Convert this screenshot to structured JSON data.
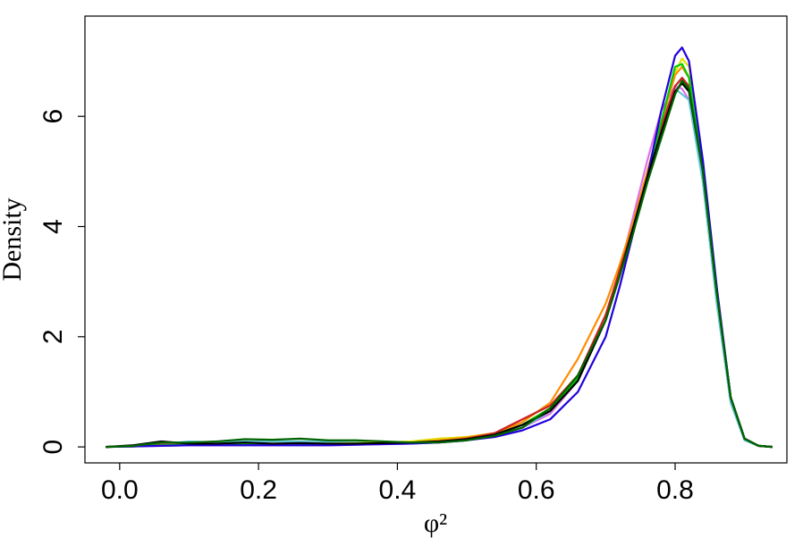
{
  "chart_data": {
    "type": "line",
    "x_label": "φ²",
    "y_label": "Density",
    "xlim": [
      -0.05,
      0.961
    ],
    "ylim": [
      -0.29,
      7.82
    ],
    "xticks": [
      {
        "value": 0,
        "label": "0.0"
      },
      0.2,
      0.4,
      0.6,
      0.8
    ],
    "yticks": [
      0,
      2,
      4,
      6
    ],
    "grid": false,
    "x": [
      -0.02,
      0.02,
      0.06,
      0.1,
      0.14,
      0.18,
      0.22,
      0.26,
      0.3,
      0.34,
      0.38,
      0.42,
      0.46,
      0.5,
      0.54,
      0.58,
      0.62,
      0.66,
      0.7,
      0.72,
      0.74,
      0.76,
      0.78,
      0.8,
      0.81,
      0.82,
      0.84,
      0.86,
      0.88,
      0.9,
      0.92,
      0.94
    ],
    "series": [
      {
        "color": "#e070e8",
        "values": [
          0,
          0.01,
          0.02,
          0.03,
          0.03,
          0.03,
          0.03,
          0.03,
          0.03,
          0.04,
          0.05,
          0.06,
          0.08,
          0.12,
          0.2,
          0.35,
          0.6,
          1.2,
          2.3,
          3.2,
          4.2,
          5.2,
          6.1,
          6.55,
          6.5,
          6.3,
          4.9,
          2.8,
          0.9,
          0.15,
          0.02,
          0
        ]
      },
      {
        "color": "#5fc7d8",
        "values": [
          0,
          0.02,
          0.05,
          0.1,
          0.08,
          0.1,
          0.1,
          0.1,
          0.09,
          0.08,
          0.08,
          0.08,
          0.09,
          0.12,
          0.2,
          0.35,
          0.65,
          1.2,
          2.3,
          3.1,
          4.0,
          5.0,
          5.9,
          6.5,
          6.4,
          6.3,
          4.8,
          2.6,
          0.8,
          0.12,
          0.02,
          0
        ]
      },
      {
        "color": "#e0e000",
        "values": [
          0,
          0.01,
          0.03,
          0.04,
          0.04,
          0.05,
          0.06,
          0.06,
          0.06,
          0.07,
          0.08,
          0.1,
          0.15,
          0.18,
          0.25,
          0.4,
          0.7,
          1.3,
          2.3,
          3.1,
          4.0,
          5.0,
          5.9,
          6.8,
          7.05,
          6.9,
          5.1,
          2.8,
          0.9,
          0.15,
          0.02,
          0
        ]
      },
      {
        "color": "#ff8c00",
        "values": [
          0,
          0.01,
          0.03,
          0.04,
          0.04,
          0.05,
          0.05,
          0.05,
          0.05,
          0.05,
          0.06,
          0.08,
          0.12,
          0.17,
          0.25,
          0.45,
          0.8,
          1.6,
          2.6,
          3.3,
          4.1,
          5.0,
          5.9,
          6.75,
          6.9,
          6.7,
          5.0,
          2.8,
          0.9,
          0.15,
          0.02,
          0
        ]
      },
      {
        "color": "#cc2020",
        "values": [
          0,
          0.02,
          0.04,
          0.04,
          0.05,
          0.05,
          0.05,
          0.05,
          0.05,
          0.06,
          0.06,
          0.07,
          0.09,
          0.15,
          0.25,
          0.5,
          0.75,
          1.3,
          2.4,
          3.2,
          4.0,
          4.9,
          5.8,
          6.55,
          6.7,
          6.55,
          5.0,
          2.8,
          0.9,
          0.15,
          0.02,
          0
        ]
      },
      {
        "color": "#00cc00",
        "values": [
          0,
          0.01,
          0.03,
          0.04,
          0.04,
          0.05,
          0.05,
          0.05,
          0.05,
          0.06,
          0.07,
          0.08,
          0.1,
          0.14,
          0.22,
          0.4,
          0.7,
          1.25,
          2.3,
          3.1,
          4.0,
          4.9,
          5.9,
          6.9,
          6.95,
          6.7,
          5.0,
          2.8,
          0.9,
          0.15,
          0.02,
          0
        ]
      },
      {
        "color": "#2200dd",
        "values": [
          0,
          0.01,
          0.02,
          0.03,
          0.03,
          0.03,
          0.03,
          0.03,
          0.03,
          0.04,
          0.05,
          0.06,
          0.08,
          0.12,
          0.18,
          0.3,
          0.5,
          1.0,
          2.0,
          2.9,
          3.9,
          4.9,
          6.1,
          7.1,
          7.25,
          7.0,
          5.2,
          2.9,
          0.9,
          0.15,
          0.02,
          0
        ]
      },
      {
        "color": "#000000",
        "values": [
          0,
          0.03,
          0.1,
          0.06,
          0.06,
          0.08,
          0.06,
          0.07,
          0.06,
          0.06,
          0.07,
          0.08,
          0.1,
          0.14,
          0.22,
          0.4,
          0.65,
          1.2,
          2.3,
          3.1,
          4.0,
          4.9,
          5.7,
          6.45,
          6.6,
          6.45,
          5.0,
          2.8,
          0.9,
          0.15,
          0.02,
          0
        ]
      },
      {
        "color": "#006400",
        "values": [
          0,
          0.02,
          0.08,
          0.08,
          0.1,
          0.14,
          0.13,
          0.15,
          0.12,
          0.12,
          0.1,
          0.08,
          0.08,
          0.12,
          0.2,
          0.35,
          0.7,
          1.3,
          2.3,
          3.1,
          3.9,
          4.8,
          5.6,
          6.4,
          6.65,
          6.5,
          5.0,
          2.8,
          0.9,
          0.15,
          0.02,
          0
        ]
      }
    ]
  }
}
